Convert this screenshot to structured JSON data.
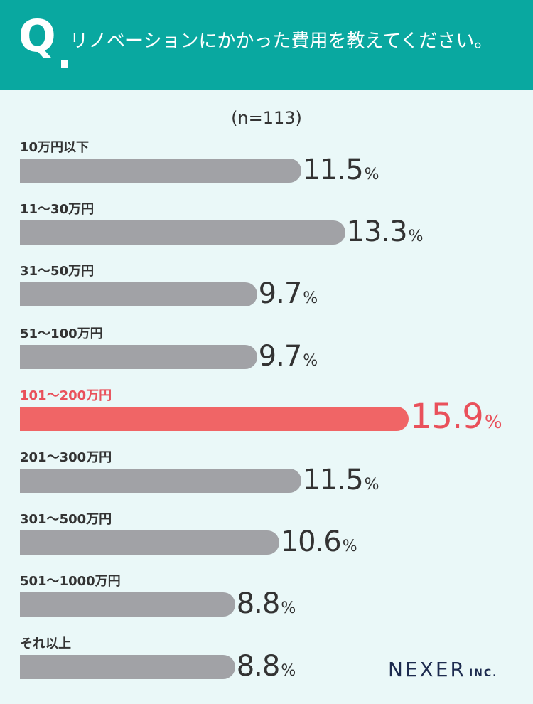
{
  "header": {
    "q_mark": "Q",
    "question": "リノベーションにかかった費用を教えてください。"
  },
  "chart_data": {
    "type": "bar",
    "orientation": "horizontal",
    "sample_label": "(n=113)",
    "unit": "%",
    "categories": [
      "10万円以下",
      "11〜30万円",
      "31〜50万円",
      "51〜100万円",
      "101〜200万円",
      "201〜300万円",
      "301〜500万円",
      "501〜1000万円",
      "それ以上"
    ],
    "values": [
      11.5,
      13.3,
      9.7,
      9.7,
      15.9,
      11.5,
      10.6,
      8.8,
      8.8
    ],
    "value_labels": [
      "11.5",
      "13.3",
      "9.7",
      "9.7",
      "15.9",
      "11.5",
      "10.6",
      "8.8",
      "8.8"
    ],
    "highlight_index": 4,
    "colors": {
      "bar": "#a1a2a6",
      "highlight": "#f06566",
      "highlight_text": "#e9515b",
      "header": "#09a8a0",
      "background": "#eaf8f8"
    }
  },
  "brand": {
    "name": "NEXER",
    "suffix": "INC."
  }
}
